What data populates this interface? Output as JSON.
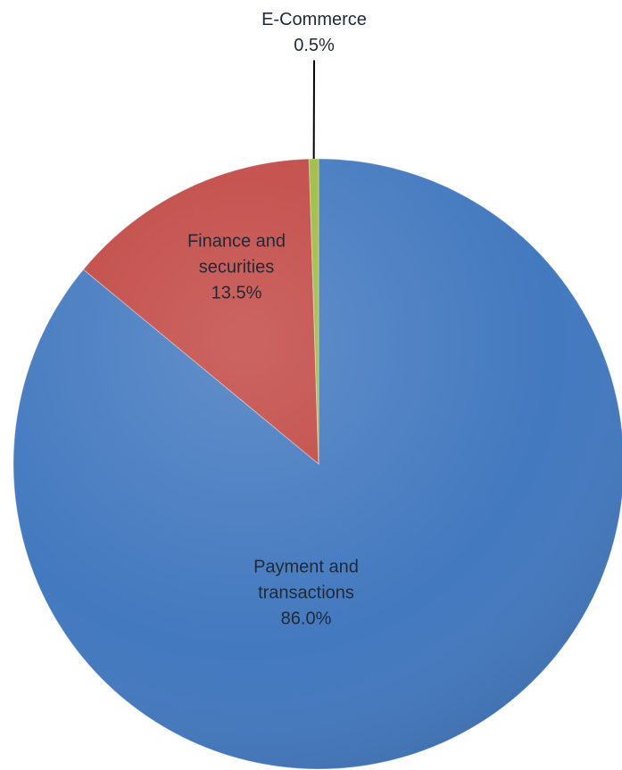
{
  "chart_data": {
    "type": "pie",
    "start_angle_deg": 0,
    "direction": "clockwise",
    "slices": [
      {
        "label_lines": [
          "Payment and",
          "transactions"
        ],
        "value_label": "86.0%",
        "value": 86.0,
        "color": "#3f76be"
      },
      {
        "label_lines": [
          "Finance and",
          "securities"
        ],
        "value_label": "13.5%",
        "value": 13.5,
        "color": "#c0433f"
      },
      {
        "label_lines": [
          "E-Commerce"
        ],
        "value_label": "0.5%",
        "value": 0.5,
        "color": "#9abb3b"
      }
    ]
  }
}
